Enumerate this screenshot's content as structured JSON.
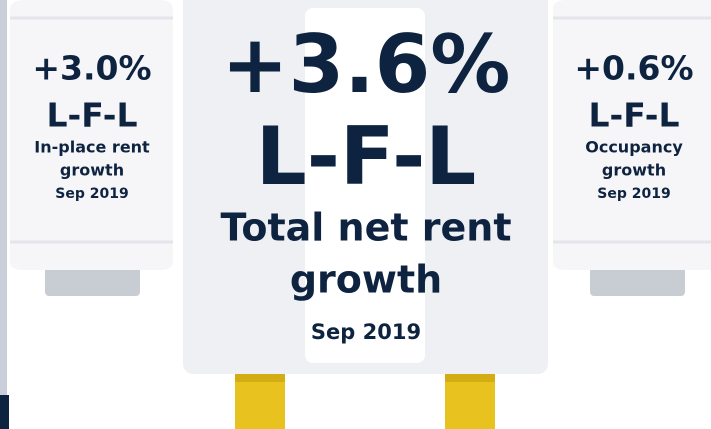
{
  "cards": [
    {
      "value": "+3.0%",
      "unit": "L-F-L",
      "label": [
        "In-place rent",
        "growth"
      ],
      "date": "Sep 2019"
    },
    {
      "value": "+3.6%",
      "unit": "L-F-L",
      "label": [
        "Total net rent",
        "growth"
      ],
      "date": "Sep 2019"
    },
    {
      "value": "+0.6%",
      "unit": "L-F-L",
      "label": [
        "Occupancy",
        "growth"
      ],
      "date": "Sep 2019"
    }
  ]
}
